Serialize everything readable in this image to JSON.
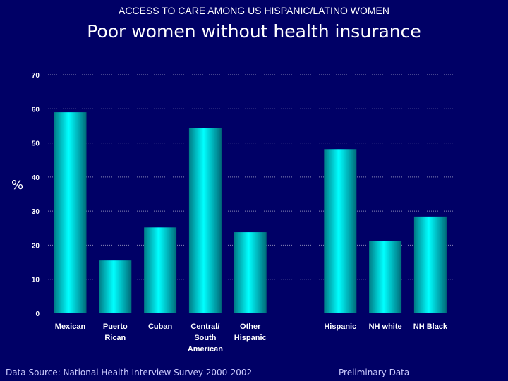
{
  "slide": {
    "supertitle": "ACCESS TO CARE AMONG US HISPANIC/LATINO WOMEN",
    "title": "Poor women without health insurance",
    "footer_left": "Data Source:  National Health Interview Survey 2000-2002",
    "footer_right": "Preliminary Data"
  },
  "colors": {
    "background": "#000066",
    "bar_light": "#00ffff",
    "bar_dark": "#007a85",
    "grid": "#8a8ab8",
    "tick_text": "#ffffff"
  },
  "chart_data": {
    "type": "bar",
    "title": "Poor women without health insurance",
    "xlabel": "",
    "ylabel": "%",
    "ylim": [
      0,
      70
    ],
    "yticks": [
      0,
      10,
      20,
      30,
      40,
      50,
      60,
      70
    ],
    "grid": true,
    "categories": [
      [
        "Mexican"
      ],
      [
        "Puerto",
        "Rican"
      ],
      [
        "Cuban"
      ],
      [
        "Central/",
        "South",
        "American"
      ],
      [
        "Other",
        "Hispanic"
      ],
      [
        "Hispanic"
      ],
      [
        "NH white"
      ],
      [
        "NH Black"
      ]
    ],
    "groups": [
      [
        0,
        1,
        2,
        3,
        4
      ],
      [
        5,
        6,
        7
      ]
    ],
    "values": [
      59,
      15.5,
      25.2,
      54.3,
      23.8,
      48.2,
      21.2,
      28.4
    ]
  }
}
